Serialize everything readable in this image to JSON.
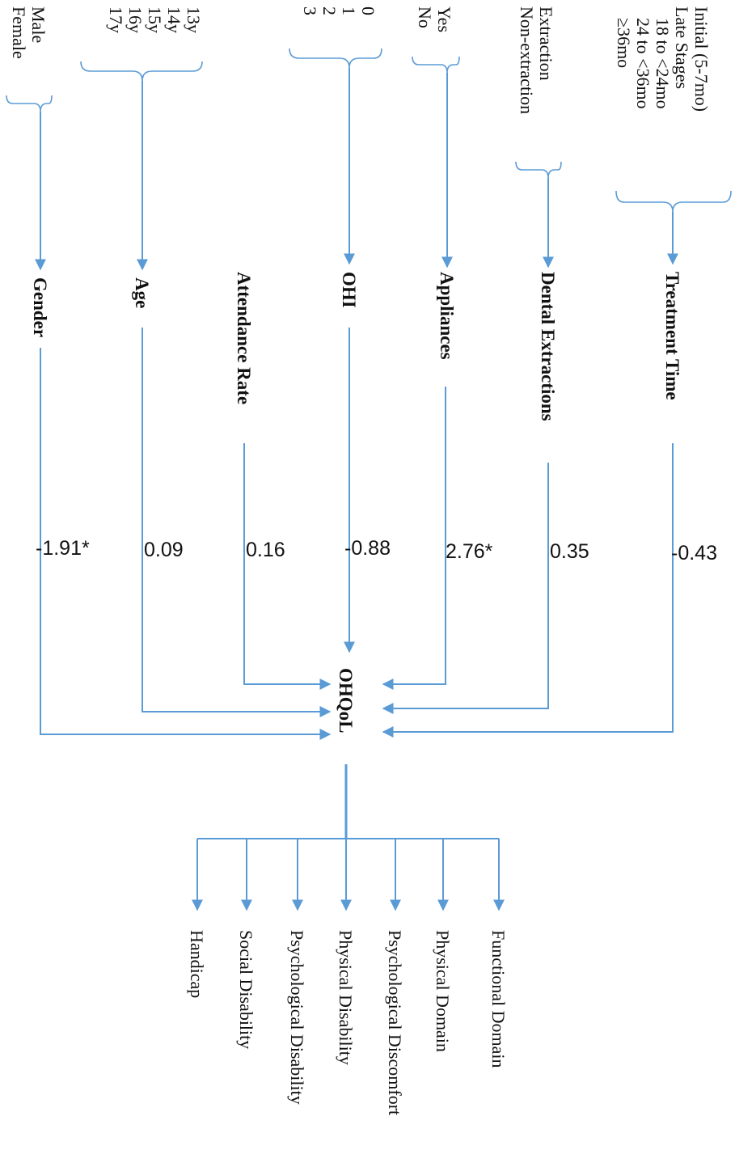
{
  "predictors": [
    {
      "id": "treatment-time",
      "name": "Treatment Time",
      "coefficient": "-0.43",
      "levels": [
        "Initial (5-7mo)",
        "Late Stages",
        "18 to <24mo",
        "24 to <36mo",
        "≥36mo"
      ]
    },
    {
      "id": "dental-extractions",
      "name": "Dental Extractions",
      "coefficient": "0.35",
      "levels": [
        "Extraction",
        "Non-extraction"
      ]
    },
    {
      "id": "appliances",
      "name": "Appliances",
      "coefficient": "2.76*",
      "levels": [
        "Yes",
        "No"
      ]
    },
    {
      "id": "ohi",
      "name": "OHI",
      "coefficient": "-0.88",
      "levels": [
        "0",
        "1",
        "2",
        "3"
      ]
    },
    {
      "id": "attendance-rate",
      "name": "Attendance Rate",
      "coefficient": "0.16",
      "levels": []
    },
    {
      "id": "age",
      "name": "Age",
      "coefficient": "0.09",
      "levels": [
        "13y",
        "14y",
        "15y",
        "16y",
        "17y"
      ]
    },
    {
      "id": "gender",
      "name": "Gender",
      "coefficient": "-1.91*",
      "levels": [
        "Male",
        "Female"
      ]
    }
  ],
  "outcome": {
    "name": "OHQoL"
  },
  "domains": [
    "Functional Domain",
    "Physical Domain",
    "Psychological Discomfort",
    "Physical Disability",
    "Psychological Disability",
    "Social Disability",
    "Handicap"
  ]
}
